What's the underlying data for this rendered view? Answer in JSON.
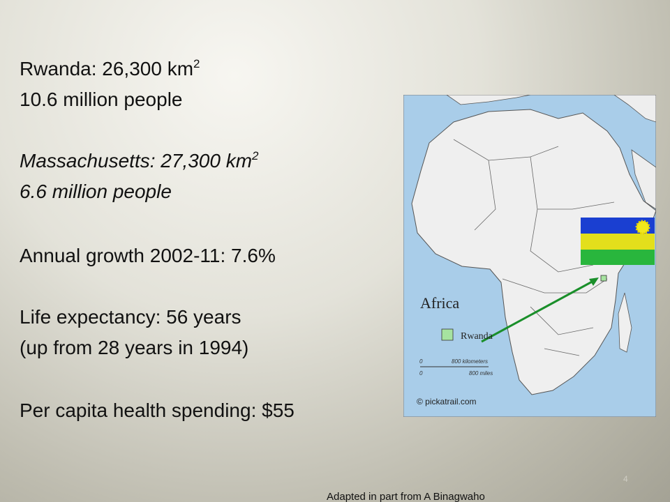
{
  "lines": [
    {
      "text": "Rwanda: 26,300 km",
      "sup": "2"
    },
    {
      "text": "10.6 million people"
    },
    {
      "text": "Massachusetts: 27,300 km",
      "sup": "2"
    },
    {
      "text": "6.6 million people"
    },
    {
      "text": "Annual growth 2002-11: 7.6%"
    },
    {
      "text": "Life expectancy: 56 years"
    },
    {
      "text": "(up from 28 years in 1994)"
    },
    {
      "text": "Per capita health spending: $55"
    }
  ],
  "map": {
    "title": "Africa",
    "legend": "Rwanda",
    "scale_km_zero": "0",
    "scale_km": "800 kilometers",
    "scale_mi_zero": "0",
    "scale_mi": "800 miles",
    "credit": "© pickatrail.com"
  },
  "slide_number": "4",
  "footer": "Adapted in part from A Binagwaho"
}
